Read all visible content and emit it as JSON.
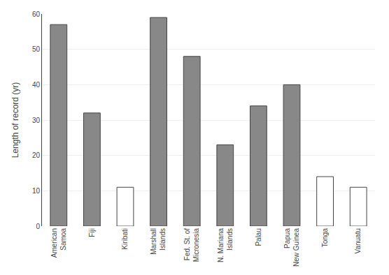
{
  "chart_data": {
    "type": "bar",
    "categories": [
      "American\nSamoa",
      "Fiji",
      "Kiribati",
      "Marshall\nIslands",
      "Fed. St. of\nMicronesia",
      "N. Mariana\nIslands",
      "Palau",
      "Papua\nNew Guinea",
      "Tonga",
      "Vanuatu"
    ],
    "values": [
      57,
      32,
      11,
      59,
      48,
      23,
      34,
      40,
      14,
      11
    ],
    "colors": [
      "#888888",
      "#888888",
      "#ffffff",
      "#888888",
      "#888888",
      "#888888",
      "#888888",
      "#888888",
      "#ffffff",
      "#ffffff"
    ],
    "ylabel": "Length of record (yr)",
    "ylim": [
      0,
      60
    ],
    "yticks": [
      0,
      10,
      20,
      30,
      40,
      50,
      60
    ],
    "grid": true
  }
}
